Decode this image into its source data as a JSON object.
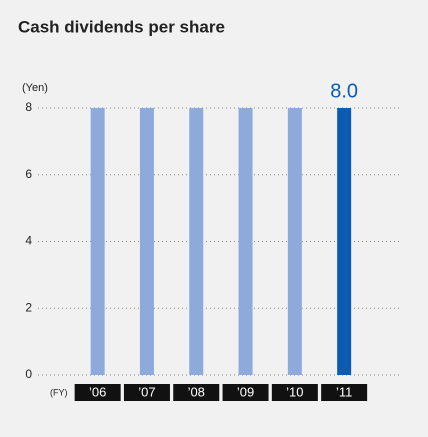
{
  "chart_data": {
    "type": "bar",
    "title": "Cash dividends per share",
    "y_label": "(Yen)",
    "x_label": "(FY)",
    "categories": [
      "’06",
      "’07",
      "’08",
      "’09",
      "’10",
      "’11"
    ],
    "values": [
      8,
      8,
      8,
      8,
      8,
      8
    ],
    "value_labels": [
      null,
      null,
      null,
      null,
      null,
      "8.0"
    ],
    "colors": [
      "#8eaadb",
      "#8eaadb",
      "#8eaadb",
      "#8eaadb",
      "#8eaadb",
      "#0d5bb0"
    ],
    "ylim": [
      0,
      8
    ],
    "yticks": [
      0,
      2,
      4,
      6,
      8
    ],
    "grid": true
  }
}
